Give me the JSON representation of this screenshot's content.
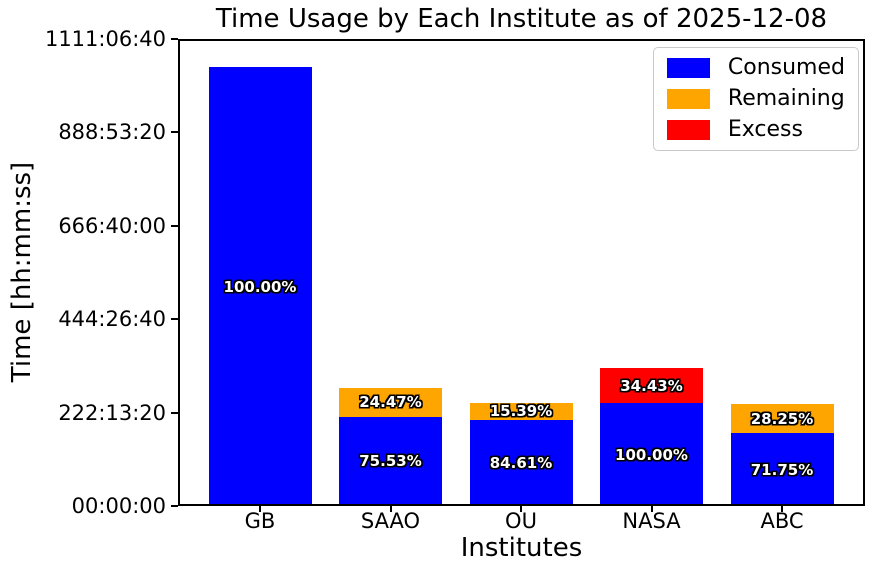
{
  "title": "Time Usage by Each Institute as of 2025-12-08",
  "axes": {
    "xlabel": "Institutes",
    "ylabel": "Time [hh:mm:ss]",
    "ytick_labels": [
      "00:00:00",
      "222:13:20",
      "444:26:40",
      "666:40:00",
      "888:53:20",
      "1111:06:40"
    ]
  },
  "legend": {
    "position": "upper-right",
    "items": [
      {
        "label": "Consumed",
        "color": "#0000ff"
      },
      {
        "label": "Remaining",
        "color": "#ffa500"
      },
      {
        "label": "Excess",
        "color": "#ff0000"
      }
    ]
  },
  "chart_data": {
    "type": "bar",
    "stacked": true,
    "title": "Time Usage by Each Institute as of 2025-12-08",
    "xlabel": "Institutes",
    "ylabel": "Time [hh:mm:ss]",
    "categories": [
      "GB",
      "SAAO",
      "OU",
      "NASA",
      "ABC"
    ],
    "ylim_seconds": [
      0,
      4000000
    ],
    "ytick_seconds": [
      0,
      800000,
      1600000,
      2400000,
      3200000,
      4000000
    ],
    "ytick_labels": [
      "00:00:00",
      "222:13:20",
      "444:26:40",
      "666:40:00",
      "888:53:20",
      "1111:06:40"
    ],
    "grid": false,
    "legend_position": "upper right",
    "series": [
      {
        "name": "Consumed",
        "color": "#0000ff",
        "approx_seconds": [
          3758000,
          766000,
          740000,
          880000,
          625000
        ],
        "percent_labels": [
          "100.00%",
          "75.53%",
          "84.61%",
          "100.00%",
          "71.75%"
        ]
      },
      {
        "name": "Remaining",
        "color": "#ffa500",
        "approx_seconds": [
          0,
          248000,
          145000,
          0,
          246000
        ],
        "percent_labels": [
          "",
          "24.47%",
          "15.39%",
          "",
          "28.25%"
        ]
      },
      {
        "name": "Excess",
        "color": "#ff0000",
        "approx_seconds": [
          0,
          0,
          0,
          298000,
          0
        ],
        "percent_labels": [
          "",
          "",
          "",
          "34.43%",
          ""
        ]
      }
    ]
  }
}
